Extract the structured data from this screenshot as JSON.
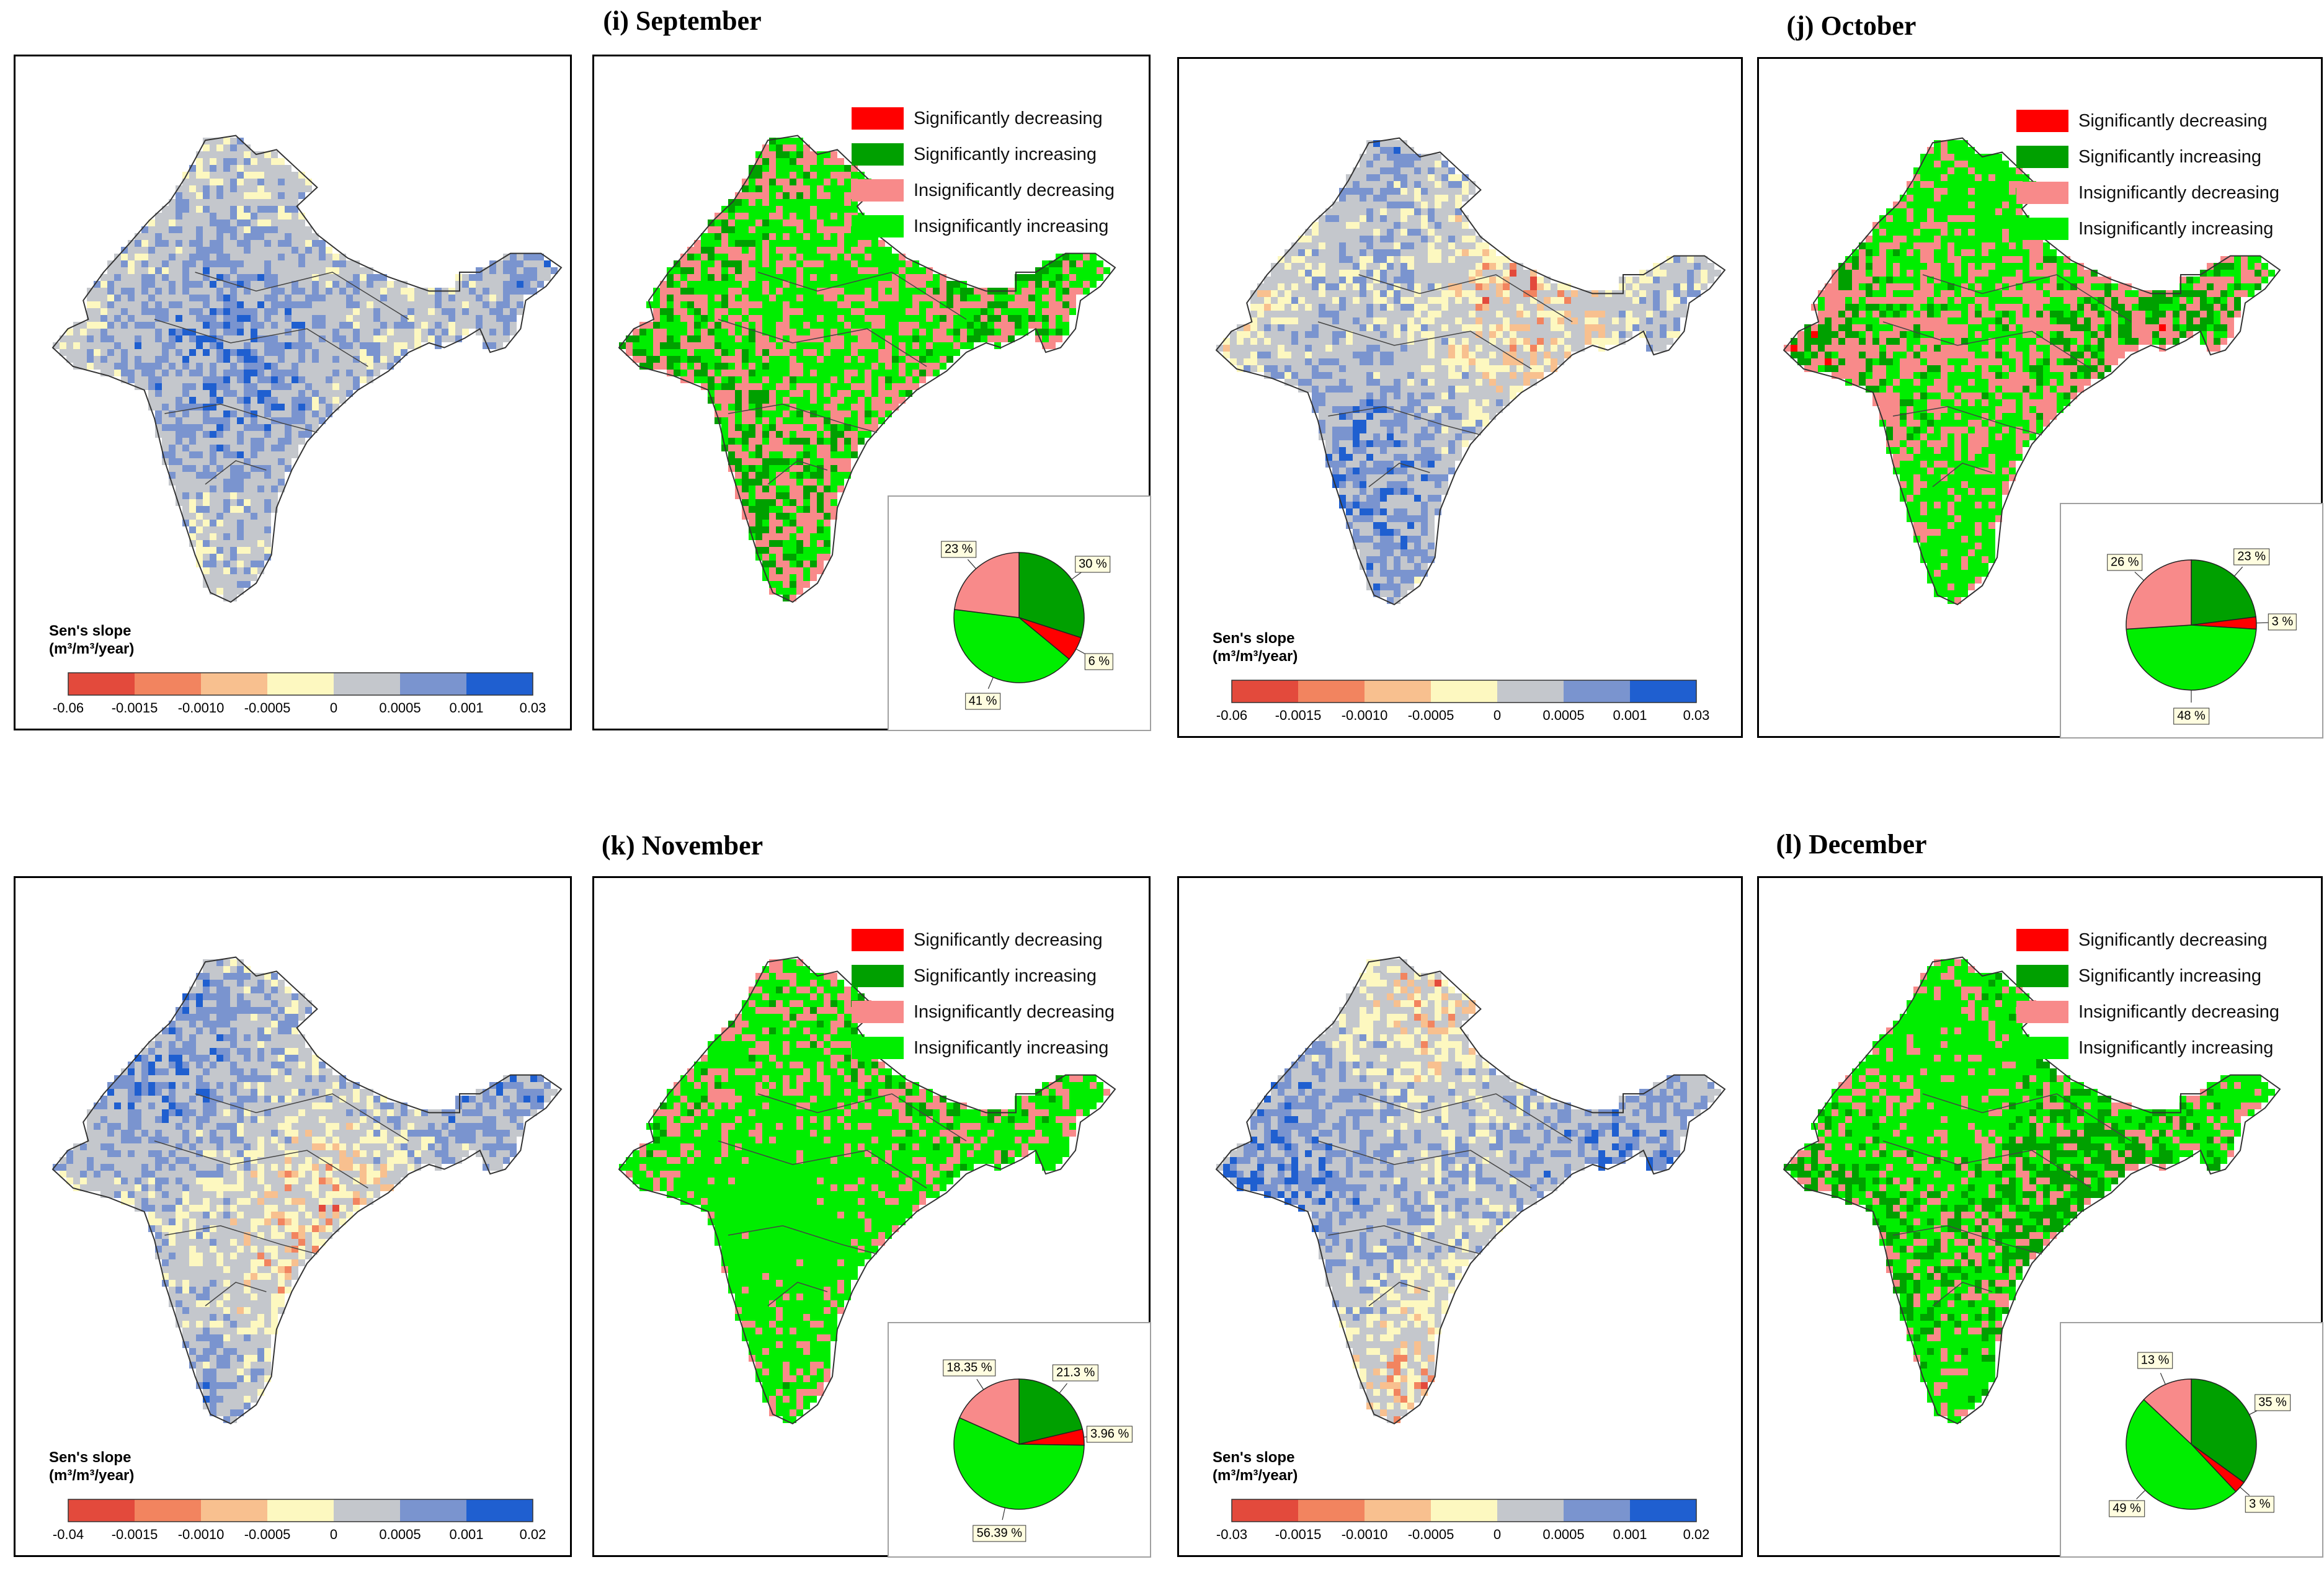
{
  "legend": {
    "items": [
      {
        "label": "Significantly decreasing",
        "color": "#ff0000"
      },
      {
        "label": "Significantly increasing",
        "color": "#00a000"
      },
      {
        "label": "Insignificantly decreasing",
        "color": "#f88a8a"
      },
      {
        "label": "Insignificantly increasing",
        "color": "#00ee00"
      }
    ]
  },
  "colorbar": {
    "title_line1": "Sen's slope",
    "title_line2": "(m³/m³/year)",
    "colors": [
      "#e34a3c",
      "#f2845f",
      "#f8c08f",
      "#fdf8c0",
      "#c4c7cc",
      "#7a94cf",
      "#1f5fd0"
    ]
  },
  "chart_data": [
    {
      "type": "pie",
      "title": "(i) September",
      "categories": [
        "Significantly decreasing",
        "Significantly increasing",
        "Insignificantly decreasing",
        "Insignificantly increasing"
      ],
      "values": [
        6,
        30,
        23,
        41
      ],
      "labels": [
        "6 %",
        "30 %",
        "23 %",
        "41 %"
      ],
      "colorbar_ticks": [
        "-0.06",
        "-0.0015",
        "-0.0010",
        "-0.0005",
        "0",
        "0.0005",
        "0.001",
        "0.03"
      ]
    },
    {
      "type": "pie",
      "title": "(j) October",
      "categories": [
        "Significantly decreasing",
        "Significantly increasing",
        "Insignificantly decreasing",
        "Insignificantly increasing"
      ],
      "values": [
        3,
        23,
        26,
        48
      ],
      "labels": [
        "3 %",
        "23 %",
        "26 %",
        "48 %"
      ],
      "colorbar_ticks": [
        "-0.06",
        "-0.0015",
        "-0.0010",
        "-0.0005",
        "0",
        "0.0005",
        "0.001",
        "0.03"
      ]
    },
    {
      "type": "pie",
      "title": "(k) November",
      "categories": [
        "Significantly decreasing",
        "Significantly increasing",
        "Insignificantly decreasing",
        "Insignificantly increasing"
      ],
      "values": [
        3.96,
        21.3,
        18.35,
        56.39
      ],
      "labels": [
        "3.96 %",
        "21.3 %",
        "18.35 %",
        "56.39 %"
      ],
      "colorbar_ticks": [
        "-0.04",
        "-0.0015",
        "-0.0010",
        "-0.0005",
        "0",
        "0.0005",
        "0.001",
        "0.02"
      ]
    },
    {
      "type": "pie",
      "title": "(l) December",
      "categories": [
        "Significantly decreasing",
        "Significantly increasing",
        "Insignificantly decreasing",
        "Insignificantly increasing"
      ],
      "values": [
        3,
        35,
        13,
        49
      ],
      "labels": [
        "3 %",
        "35 %",
        "13 %",
        "49 %"
      ],
      "colorbar_ticks": [
        "-0.03",
        "-0.0015",
        "-0.0010",
        "-0.0005",
        "0",
        "0.0005",
        "0.001",
        "0.02"
      ]
    }
  ]
}
